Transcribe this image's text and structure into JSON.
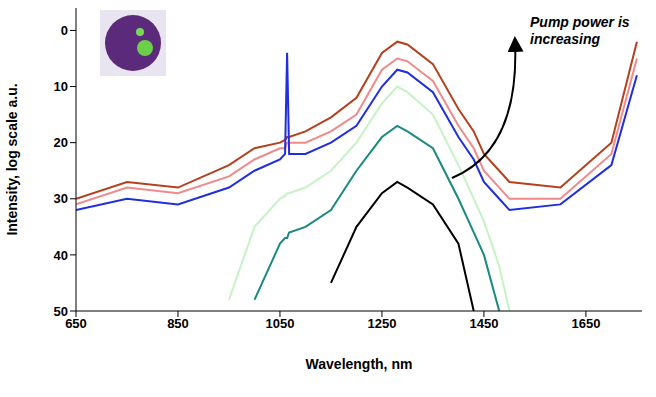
{
  "chart_data": {
    "type": "line",
    "x_label": "Wavelength, nm",
    "y_label": "Intensity, log scale a.u.",
    "annotations": [
      {
        "text": "Pump power is increasing"
      }
    ],
    "x": [
      650,
      750,
      850,
      950,
      1000,
      1050,
      1060,
      1064,
      1068,
      1100,
      1150,
      1200,
      1250,
      1280,
      1300,
      1350,
      1400,
      1430,
      1450,
      1480,
      1500,
      1600,
      1700,
      1750
    ],
    "series": [
      {
        "color": "#b5401f",
        "values": [
          30,
          27,
          28,
          24,
          21,
          20,
          19.5,
          19,
          19,
          18,
          15.5,
          12,
          4,
          2,
          2.5,
          6,
          14,
          18,
          22,
          25,
          27,
          28,
          20,
          2
        ]
      },
      {
        "color": "#f08a8a",
        "values": [
          31,
          28,
          29,
          26,
          23,
          21,
          21,
          20,
          20,
          20,
          18,
          15,
          7,
          5,
          5.5,
          9,
          17,
          21,
          25,
          28,
          30,
          30,
          22,
          5
        ]
      },
      {
        "color": "#1f2ee0",
        "values": [
          32,
          30,
          31,
          28,
          25,
          23,
          22,
          4,
          22,
          22,
          20,
          17,
          10,
          7,
          7.5,
          11,
          19,
          23,
          27,
          30,
          32,
          31,
          24,
          8
        ]
      },
      {
        "color": "#c6f2c6",
        "values": [
          null,
          null,
          null,
          48,
          35,
          30,
          29.5,
          29,
          29,
          28,
          25,
          20,
          13,
          10,
          11,
          15,
          24,
          30,
          34,
          42,
          50,
          null,
          null,
          null
        ]
      },
      {
        "color": "#1a8a80",
        "values": [
          null,
          null,
          null,
          null,
          48,
          38,
          37,
          37,
          36,
          35,
          32,
          25,
          19,
          17,
          18,
          21,
          30,
          36,
          40,
          50,
          null,
          null,
          null,
          null
        ]
      },
      {
        "color": "#000000",
        "values": [
          null,
          null,
          null,
          null,
          null,
          null,
          null,
          null,
          null,
          null,
          45,
          35,
          29,
          27,
          28,
          31,
          38,
          50,
          null,
          null,
          null,
          null,
          null,
          null
        ]
      }
    ],
    "xlim": [
      650,
      1760
    ],
    "xticks": [
      650,
      850,
      1050,
      1250,
      1450,
      1650
    ],
    "ylim": [
      50,
      -4
    ],
    "yticks": [
      0,
      10,
      20,
      30,
      40,
      50
    ],
    "log": "y",
    "grid": false
  }
}
